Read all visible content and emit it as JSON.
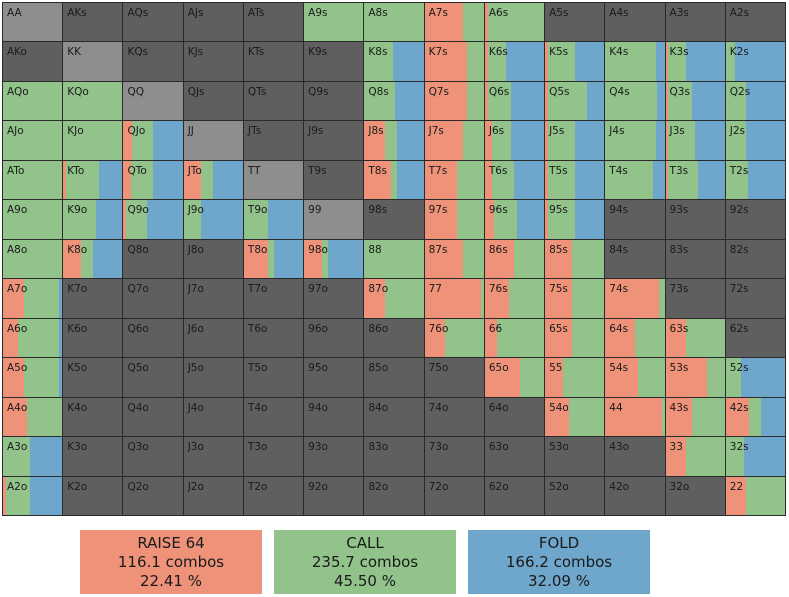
{
  "colors": {
    "raise": "#EE937A",
    "call": "#92C38B",
    "fold": "#6FA6CB",
    "excluded": "#5F5F5F",
    "pair_excluded": "#8E8E8E"
  },
  "grid": {
    "rows": [
      [
        {
          "hand": "AA",
          "r": 0,
          "c": 0,
          "f": 0,
          "pair": true
        },
        {
          "hand": "AKs",
          "r": 0,
          "c": 0,
          "f": 0
        },
        {
          "hand": "AQs",
          "r": 0,
          "c": 0,
          "f": 0
        },
        {
          "hand": "AJs",
          "r": 0,
          "c": 0,
          "f": 0
        },
        {
          "hand": "ATs",
          "r": 0,
          "c": 0,
          "f": 0
        },
        {
          "hand": "A9s",
          "r": 0,
          "c": 1,
          "f": 0
        },
        {
          "hand": "A8s",
          "r": 0,
          "c": 1,
          "f": 0
        },
        {
          "hand": "A7s",
          "r": 0.65,
          "c": 0.35,
          "f": 0
        },
        {
          "hand": "A6s",
          "r": 0.05,
          "c": 0.95,
          "f": 0
        },
        {
          "hand": "A5s",
          "r": 0,
          "c": 0,
          "f": 0
        },
        {
          "hand": "A4s",
          "r": 0,
          "c": 0,
          "f": 0
        },
        {
          "hand": "A3s",
          "r": 0,
          "c": 0,
          "f": 0
        },
        {
          "hand": "A2s",
          "r": 0,
          "c": 0,
          "f": 0
        }
      ],
      [
        {
          "hand": "AKo",
          "r": 0,
          "c": 0,
          "f": 0
        },
        {
          "hand": "KK",
          "r": 0,
          "c": 0,
          "f": 0,
          "pair": true
        },
        {
          "hand": "KQs",
          "r": 0,
          "c": 0,
          "f": 0
        },
        {
          "hand": "KJs",
          "r": 0,
          "c": 0,
          "f": 0
        },
        {
          "hand": "KTs",
          "r": 0,
          "c": 0,
          "f": 0
        },
        {
          "hand": "K9s",
          "r": 0,
          "c": 0,
          "f": 0
        },
        {
          "hand": "K8s",
          "r": 0,
          "c": 0.48,
          "f": 0.52
        },
        {
          "hand": "K7s",
          "r": 0.72,
          "c": 0.28,
          "f": 0
        },
        {
          "hand": "K6s",
          "r": 0.05,
          "c": 0.3,
          "f": 0.65
        },
        {
          "hand": "K5s",
          "r": 0.05,
          "c": 0.45,
          "f": 0.5
        },
        {
          "hand": "K4s",
          "r": 0,
          "c": 0.85,
          "f": 0.15
        },
        {
          "hand": "K3s",
          "r": 0.05,
          "c": 0.3,
          "f": 0.65
        },
        {
          "hand": "K2s",
          "r": 0,
          "c": 0.15,
          "f": 0.85
        }
      ],
      [
        {
          "hand": "AQo",
          "r": 0,
          "c": 1,
          "f": 0
        },
        {
          "hand": "KQo",
          "r": 0,
          "c": 1,
          "f": 0
        },
        {
          "hand": "QQ",
          "r": 0,
          "c": 0,
          "f": 0,
          "pair": true
        },
        {
          "hand": "QJs",
          "r": 0,
          "c": 0,
          "f": 0
        },
        {
          "hand": "QTs",
          "r": 0,
          "c": 0,
          "f": 0
        },
        {
          "hand": "Q9s",
          "r": 0,
          "c": 0,
          "f": 0
        },
        {
          "hand": "Q8s",
          "r": 0,
          "c": 0.52,
          "f": 0.48
        },
        {
          "hand": "Q7s",
          "r": 0.72,
          "c": 0.28,
          "f": 0
        },
        {
          "hand": "Q6s",
          "r": 0.05,
          "c": 0.4,
          "f": 0.55
        },
        {
          "hand": "Q5s",
          "r": 0.05,
          "c": 0.65,
          "f": 0.3
        },
        {
          "hand": "Q4s",
          "r": 0,
          "c": 0.88,
          "f": 0.12
        },
        {
          "hand": "Q3s",
          "r": 0.05,
          "c": 0.4,
          "f": 0.55
        },
        {
          "hand": "Q2s",
          "r": 0,
          "c": 0.35,
          "f": 0.65
        }
      ],
      [
        {
          "hand": "AJo",
          "r": 0,
          "c": 1,
          "f": 0
        },
        {
          "hand": "KJo",
          "r": 0,
          "c": 1,
          "f": 0
        },
        {
          "hand": "QJo",
          "r": 0.15,
          "c": 0.35,
          "f": 0.5
        },
        {
          "hand": "JJ",
          "r": 0,
          "c": 0,
          "f": 0,
          "pair": true
        },
        {
          "hand": "JTs",
          "r": 0,
          "c": 0,
          "f": 0
        },
        {
          "hand": "J9s",
          "r": 0,
          "c": 0,
          "f": 0
        },
        {
          "hand": "J8s",
          "r": 0.35,
          "c": 0.2,
          "f": 0.45
        },
        {
          "hand": "J7s",
          "r": 0.65,
          "c": 0.35,
          "f": 0
        },
        {
          "hand": "J6s",
          "r": 0.12,
          "c": 0.33,
          "f": 0.55
        },
        {
          "hand": "J5s",
          "r": 0.05,
          "c": 0.45,
          "f": 0.5
        },
        {
          "hand": "J4s",
          "r": 0,
          "c": 0.85,
          "f": 0.15
        },
        {
          "hand": "J3s",
          "r": 0.05,
          "c": 0.45,
          "f": 0.5
        },
        {
          "hand": "J2s",
          "r": 0,
          "c": 0.35,
          "f": 0.65
        }
      ],
      [
        {
          "hand": "ATo",
          "r": 0,
          "c": 1,
          "f": 0
        },
        {
          "hand": "KTo",
          "r": 0.05,
          "c": 0.55,
          "f": 0.4
        },
        {
          "hand": "QTo",
          "r": 0.12,
          "c": 0.38,
          "f": 0.5
        },
        {
          "hand": "JTo",
          "r": 0.3,
          "c": 0.2,
          "f": 0.5
        },
        {
          "hand": "TT",
          "r": 0,
          "c": 0,
          "f": 0,
          "pair": true
        },
        {
          "hand": "T9s",
          "r": 0,
          "c": 0,
          "f": 0
        },
        {
          "hand": "T8s",
          "r": 0.45,
          "c": 0.1,
          "f": 0.45
        },
        {
          "hand": "T7s",
          "r": 0.55,
          "c": 0.45,
          "f": 0
        },
        {
          "hand": "T6s",
          "r": 0.12,
          "c": 0.38,
          "f": 0.5
        },
        {
          "hand": "T5s",
          "r": 0.05,
          "c": 0.45,
          "f": 0.5
        },
        {
          "hand": "T4s",
          "r": 0,
          "c": 0.8,
          "f": 0.2
        },
        {
          "hand": "T3s",
          "r": 0.05,
          "c": 0.5,
          "f": 0.45
        },
        {
          "hand": "T2s",
          "r": 0,
          "c": 0.38,
          "f": 0.62
        }
      ],
      [
        {
          "hand": "A9o",
          "r": 0,
          "c": 1,
          "f": 0
        },
        {
          "hand": "K9o",
          "r": 0,
          "c": 0.55,
          "f": 0.45
        },
        {
          "hand": "Q9o",
          "r": 0.05,
          "c": 0.35,
          "f": 0.6
        },
        {
          "hand": "J9o",
          "r": 0,
          "c": 0.3,
          "f": 0.7
        },
        {
          "hand": "T9o",
          "r": 0,
          "c": 0.4,
          "f": 0.6
        },
        {
          "hand": "99",
          "r": 0,
          "c": 0,
          "f": 0,
          "pair": true
        },
        {
          "hand": "98s",
          "r": 0,
          "c": 0,
          "f": 0
        },
        {
          "hand": "97s",
          "r": 0.55,
          "c": 0.45,
          "f": 0
        },
        {
          "hand": "96s",
          "r": 0.15,
          "c": 0.4,
          "f": 0.45
        },
        {
          "hand": "95s",
          "r": 0.05,
          "c": 0.45,
          "f": 0.5
        },
        {
          "hand": "94s",
          "r": 0,
          "c": 0,
          "f": 0
        },
        {
          "hand": "93s",
          "r": 0,
          "c": 0,
          "f": 0
        },
        {
          "hand": "92s",
          "r": 0,
          "c": 0,
          "f": 0
        }
      ],
      [
        {
          "hand": "A8o",
          "r": 0,
          "c": 1,
          "f": 0
        },
        {
          "hand": "K8o",
          "r": 0.3,
          "c": 0.2,
          "f": 0.5
        },
        {
          "hand": "Q8o",
          "r": 0,
          "c": 0,
          "f": 0
        },
        {
          "hand": "J8o",
          "r": 0,
          "c": 0,
          "f": 0
        },
        {
          "hand": "T8o",
          "r": 0.4,
          "c": 0.1,
          "f": 0.5
        },
        {
          "hand": "98o",
          "r": 0.3,
          "c": 0.1,
          "f": 0.6
        },
        {
          "hand": "88",
          "r": 0,
          "c": 1,
          "f": 0,
          "pair": true
        },
        {
          "hand": "87s",
          "r": 0.65,
          "c": 0.35,
          "f": 0
        },
        {
          "hand": "86s",
          "r": 0.5,
          "c": 0.5,
          "f": 0
        },
        {
          "hand": "85s",
          "r": 0.45,
          "c": 0.55,
          "f": 0
        },
        {
          "hand": "84s",
          "r": 0,
          "c": 0,
          "f": 0
        },
        {
          "hand": "83s",
          "r": 0,
          "c": 0,
          "f": 0
        },
        {
          "hand": "82s",
          "r": 0,
          "c": 0,
          "f": 0
        }
      ],
      [
        {
          "hand": "A7o",
          "r": 0.35,
          "c": 0.6,
          "f": 0.05
        },
        {
          "hand": "K7o",
          "r": 0,
          "c": 0,
          "f": 0
        },
        {
          "hand": "Q7o",
          "r": 0,
          "c": 0,
          "f": 0
        },
        {
          "hand": "J7o",
          "r": 0,
          "c": 0,
          "f": 0
        },
        {
          "hand": "T7o",
          "r": 0,
          "c": 0,
          "f": 0
        },
        {
          "hand": "97o",
          "r": 0,
          "c": 0,
          "f": 0
        },
        {
          "hand": "87o",
          "r": 0.35,
          "c": 0.65,
          "f": 0
        },
        {
          "hand": "77",
          "r": 0.95,
          "c": 0.05,
          "f": 0,
          "pair": true
        },
        {
          "hand": "76s",
          "r": 0.4,
          "c": 0.6,
          "f": 0
        },
        {
          "hand": "75s",
          "r": 0.45,
          "c": 0.55,
          "f": 0
        },
        {
          "hand": "74s",
          "r": 0.9,
          "c": 0.1,
          "f": 0
        },
        {
          "hand": "73s",
          "r": 0,
          "c": 0,
          "f": 0
        },
        {
          "hand": "72s",
          "r": 0,
          "c": 0,
          "f": 0
        }
      ],
      [
        {
          "hand": "A6o",
          "r": 0.25,
          "c": 0.7,
          "f": 0.05
        },
        {
          "hand": "K6o",
          "r": 0,
          "c": 0,
          "f": 0
        },
        {
          "hand": "Q6o",
          "r": 0,
          "c": 0,
          "f": 0
        },
        {
          "hand": "J6o",
          "r": 0,
          "c": 0,
          "f": 0
        },
        {
          "hand": "T6o",
          "r": 0,
          "c": 0,
          "f": 0
        },
        {
          "hand": "96o",
          "r": 0,
          "c": 0,
          "f": 0
        },
        {
          "hand": "86o",
          "r": 0,
          "c": 0,
          "f": 0
        },
        {
          "hand": "76o",
          "r": 0.35,
          "c": 0.65,
          "f": 0
        },
        {
          "hand": "66",
          "r": 0.2,
          "c": 0.8,
          "f": 0,
          "pair": true
        },
        {
          "hand": "65s",
          "r": 0.45,
          "c": 0.55,
          "f": 0
        },
        {
          "hand": "64s",
          "r": 0.5,
          "c": 0.5,
          "f": 0
        },
        {
          "hand": "63s",
          "r": 0.35,
          "c": 0.65,
          "f": 0
        },
        {
          "hand": "62s",
          "r": 0,
          "c": 0,
          "f": 0
        }
      ],
      [
        {
          "hand": "A5o",
          "r": 0.35,
          "c": 0.6,
          "f": 0.05
        },
        {
          "hand": "K5o",
          "r": 0,
          "c": 0,
          "f": 0
        },
        {
          "hand": "Q5o",
          "r": 0,
          "c": 0,
          "f": 0
        },
        {
          "hand": "J5o",
          "r": 0,
          "c": 0,
          "f": 0
        },
        {
          "hand": "T5o",
          "r": 0,
          "c": 0,
          "f": 0
        },
        {
          "hand": "95o",
          "r": 0,
          "c": 0,
          "f": 0
        },
        {
          "hand": "85o",
          "r": 0,
          "c": 0,
          "f": 0
        },
        {
          "hand": "75o",
          "r": 0,
          "c": 0,
          "f": 0
        },
        {
          "hand": "65o",
          "r": 0.6,
          "c": 0.4,
          "f": 0
        },
        {
          "hand": "55",
          "r": 0.3,
          "c": 0.7,
          "f": 0,
          "pair": true
        },
        {
          "hand": "54s",
          "r": 0.55,
          "c": 0.45,
          "f": 0
        },
        {
          "hand": "53s",
          "r": 0.7,
          "c": 0.3,
          "f": 0
        },
        {
          "hand": "52s",
          "r": 0,
          "c": 0.25,
          "f": 0.75
        }
      ],
      [
        {
          "hand": "A4o",
          "r": 0.4,
          "c": 0.6,
          "f": 0
        },
        {
          "hand": "K4o",
          "r": 0,
          "c": 0,
          "f": 0
        },
        {
          "hand": "Q4o",
          "r": 0,
          "c": 0,
          "f": 0
        },
        {
          "hand": "J4o",
          "r": 0,
          "c": 0,
          "f": 0
        },
        {
          "hand": "T4o",
          "r": 0,
          "c": 0,
          "f": 0
        },
        {
          "hand": "94o",
          "r": 0,
          "c": 0,
          "f": 0
        },
        {
          "hand": "84o",
          "r": 0,
          "c": 0,
          "f": 0
        },
        {
          "hand": "74o",
          "r": 0,
          "c": 0,
          "f": 0
        },
        {
          "hand": "64o",
          "r": 0,
          "c": 0,
          "f": 0
        },
        {
          "hand": "54o",
          "r": 0.4,
          "c": 0.6,
          "f": 0
        },
        {
          "hand": "44",
          "r": 0.95,
          "c": 0.05,
          "f": 0,
          "pair": true
        },
        {
          "hand": "43s",
          "r": 0.45,
          "c": 0.55,
          "f": 0
        },
        {
          "hand": "42s",
          "r": 0.4,
          "c": 0.2,
          "f": 0.4
        }
      ],
      [
        {
          "hand": "A3o",
          "r": 0,
          "c": 0.45,
          "f": 0.55
        },
        {
          "hand": "K3o",
          "r": 0,
          "c": 0,
          "f": 0
        },
        {
          "hand": "Q3o",
          "r": 0,
          "c": 0,
          "f": 0
        },
        {
          "hand": "J3o",
          "r": 0,
          "c": 0,
          "f": 0
        },
        {
          "hand": "T3o",
          "r": 0,
          "c": 0,
          "f": 0
        },
        {
          "hand": "93o",
          "r": 0,
          "c": 0,
          "f": 0
        },
        {
          "hand": "83o",
          "r": 0,
          "c": 0,
          "f": 0
        },
        {
          "hand": "73o",
          "r": 0,
          "c": 0,
          "f": 0
        },
        {
          "hand": "63o",
          "r": 0,
          "c": 0,
          "f": 0
        },
        {
          "hand": "53o",
          "r": 0,
          "c": 0,
          "f": 0
        },
        {
          "hand": "43o",
          "r": 0,
          "c": 0,
          "f": 0
        },
        {
          "hand": "33",
          "r": 0.35,
          "c": 0.65,
          "f": 0,
          "pair": true
        },
        {
          "hand": "32s",
          "r": 0,
          "c": 0.3,
          "f": 0.7
        }
      ],
      [
        {
          "hand": "A2o",
          "r": 0.05,
          "c": 0.4,
          "f": 0.55
        },
        {
          "hand": "K2o",
          "r": 0,
          "c": 0,
          "f": 0
        },
        {
          "hand": "Q2o",
          "r": 0,
          "c": 0,
          "f": 0
        },
        {
          "hand": "J2o",
          "r": 0,
          "c": 0,
          "f": 0
        },
        {
          "hand": "T2o",
          "r": 0,
          "c": 0,
          "f": 0
        },
        {
          "hand": "92o",
          "r": 0,
          "c": 0,
          "f": 0
        },
        {
          "hand": "82o",
          "r": 0,
          "c": 0,
          "f": 0
        },
        {
          "hand": "72o",
          "r": 0,
          "c": 0,
          "f": 0
        },
        {
          "hand": "62o",
          "r": 0,
          "c": 0,
          "f": 0
        },
        {
          "hand": "52o",
          "r": 0,
          "c": 0,
          "f": 0
        },
        {
          "hand": "42o",
          "r": 0,
          "c": 0,
          "f": 0
        },
        {
          "hand": "32o",
          "r": 0,
          "c": 0,
          "f": 0
        },
        {
          "hand": "22",
          "r": 0.35,
          "c": 0.65,
          "f": 0,
          "pair": true
        }
      ]
    ]
  },
  "legend": {
    "raise": {
      "title": "RAISE 64",
      "combos": "116.1 combos",
      "percent": "22.41 %"
    },
    "call": {
      "title": "CALL",
      "combos": "235.7 combos",
      "percent": "45.50 %"
    },
    "fold": {
      "title": "FOLD",
      "combos": "166.2 combos",
      "percent": "32.09 %"
    }
  }
}
